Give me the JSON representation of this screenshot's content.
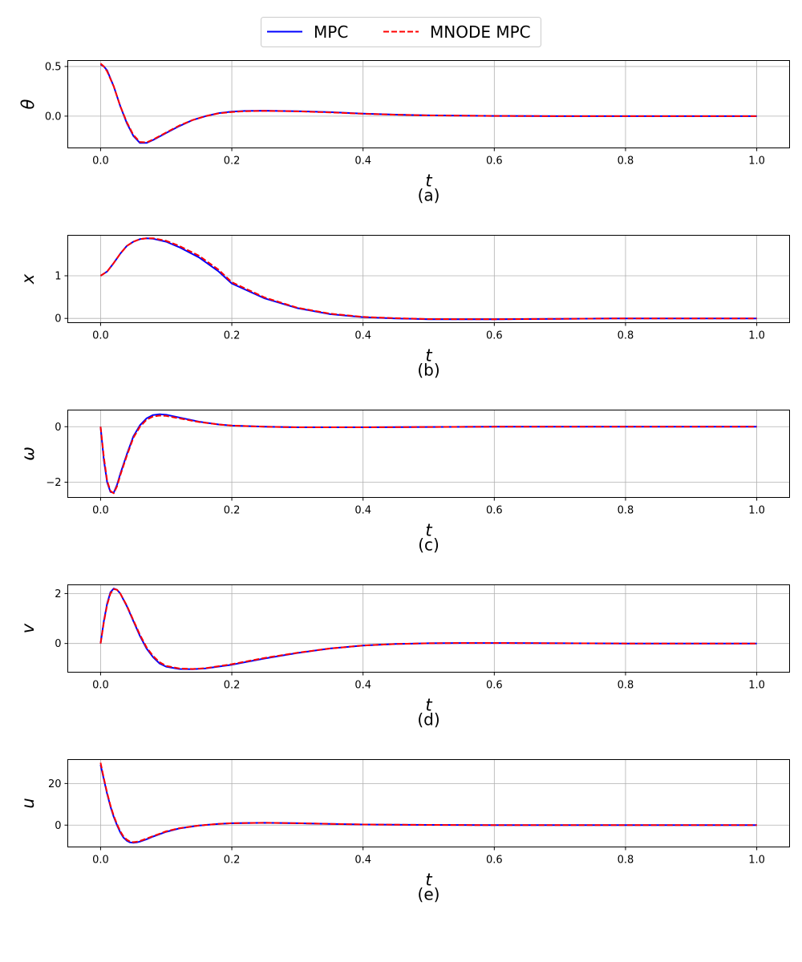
{
  "legend": {
    "entries": [
      {
        "label": "MPC",
        "color": "#0000ff",
        "dash": "solid"
      },
      {
        "label": "MNODE MPC",
        "color": "#ff0000",
        "dash": "dashed"
      }
    ],
    "placement": "top-center"
  },
  "chart_data": [
    {
      "type": "line",
      "caption": "(a)",
      "xlabel": "t",
      "ylabel": "θ",
      "xlim": [
        -0.05,
        1.05
      ],
      "ylim": [
        -0.32,
        0.56
      ],
      "xticks": [
        "0.0",
        "0.2",
        "0.4",
        "0.6",
        "0.8",
        "1.0"
      ],
      "xtick_values": [
        0,
        0.2,
        0.4,
        0.6,
        0.8,
        1.0
      ],
      "yticks": [
        "0.5",
        "0.0"
      ],
      "ytick_values": [
        0.5,
        0.0
      ],
      "grid": true,
      "x": [
        0,
        0.005,
        0.01,
        0.02,
        0.03,
        0.04,
        0.05,
        0.06,
        0.07,
        0.08,
        0.1,
        0.12,
        0.14,
        0.16,
        0.18,
        0.2,
        0.22,
        0.25,
        0.3,
        0.35,
        0.4,
        0.45,
        0.5,
        0.6,
        0.7,
        0.8,
        0.9,
        1.0
      ],
      "series": [
        {
          "name": "MPC",
          "values": [
            0.52,
            0.5,
            0.46,
            0.3,
            0.1,
            -0.07,
            -0.2,
            -0.27,
            -0.27,
            -0.24,
            -0.17,
            -0.1,
            -0.04,
            0.0,
            0.03,
            0.045,
            0.052,
            0.055,
            0.05,
            0.04,
            0.025,
            0.015,
            0.008,
            0.002,
            0.0,
            0.0,
            0.0,
            0.0
          ]
        },
        {
          "name": "MNODE MPC",
          "values": [
            0.53,
            0.5,
            0.45,
            0.3,
            0.1,
            -0.06,
            -0.19,
            -0.26,
            -0.265,
            -0.235,
            -0.165,
            -0.095,
            -0.04,
            0.0,
            0.028,
            0.042,
            0.05,
            0.053,
            0.048,
            0.038,
            0.024,
            0.014,
            0.007,
            0.002,
            0.0,
            0.0,
            0.0,
            0.0
          ]
        }
      ]
    },
    {
      "type": "line",
      "caption": "(b)",
      "xlabel": "t",
      "ylabel": "x",
      "xlim": [
        -0.05,
        1.05
      ],
      "ylim": [
        -0.1,
        1.95
      ],
      "xticks": [
        "0.0",
        "0.2",
        "0.4",
        "0.6",
        "0.8",
        "1.0"
      ],
      "xtick_values": [
        0,
        0.2,
        0.4,
        0.6,
        0.8,
        1.0
      ],
      "yticks": [
        "1",
        "0"
      ],
      "ytick_values": [
        1,
        0
      ],
      "grid": true,
      "x": [
        0,
        0.01,
        0.02,
        0.03,
        0.04,
        0.05,
        0.06,
        0.07,
        0.08,
        0.1,
        0.12,
        0.15,
        0.18,
        0.2,
        0.25,
        0.3,
        0.35,
        0.4,
        0.45,
        0.5,
        0.6,
        0.7,
        0.8,
        0.9,
        1.0
      ],
      "series": [
        {
          "name": "MPC",
          "values": [
            1.0,
            1.1,
            1.3,
            1.52,
            1.7,
            1.8,
            1.86,
            1.88,
            1.87,
            1.8,
            1.67,
            1.43,
            1.1,
            0.82,
            0.47,
            0.24,
            0.1,
            0.03,
            0.0,
            -0.02,
            -0.02,
            -0.01,
            0.0,
            0.0,
            0.0
          ]
        },
        {
          "name": "MNODE MPC",
          "values": [
            1.0,
            1.1,
            1.3,
            1.52,
            1.7,
            1.8,
            1.86,
            1.88,
            1.88,
            1.82,
            1.7,
            1.47,
            1.14,
            0.85,
            0.49,
            0.25,
            0.11,
            0.035,
            0.005,
            -0.015,
            -0.02,
            -0.01,
            0.0,
            0.0,
            0.0
          ]
        }
      ]
    },
    {
      "type": "line",
      "caption": "(c)",
      "xlabel": "t",
      "ylabel": "ω",
      "xlim": [
        -0.05,
        1.05
      ],
      "ylim": [
        -2.55,
        0.6
      ],
      "xticks": [
        "0.0",
        "0.2",
        "0.4",
        "0.6",
        "0.8",
        "1.0"
      ],
      "xtick_values": [
        0,
        0.2,
        0.4,
        0.6,
        0.8,
        1.0
      ],
      "yticks": [
        "0",
        "−2"
      ],
      "ytick_values": [
        0,
        -2
      ],
      "grid": true,
      "x": [
        0,
        0.005,
        0.01,
        0.015,
        0.02,
        0.025,
        0.03,
        0.04,
        0.05,
        0.06,
        0.07,
        0.08,
        0.09,
        0.1,
        0.12,
        0.15,
        0.18,
        0.2,
        0.25,
        0.3,
        0.35,
        0.4,
        0.5,
        0.6,
        0.7,
        0.8,
        0.9,
        1.0
      ],
      "series": [
        {
          "name": "MPC",
          "values": [
            0.0,
            -1.2,
            -2.0,
            -2.35,
            -2.38,
            -2.1,
            -1.7,
            -1.0,
            -0.35,
            0.05,
            0.3,
            0.42,
            0.45,
            0.43,
            0.33,
            0.18,
            0.08,
            0.04,
            0.0,
            -0.02,
            -0.02,
            -0.02,
            -0.01,
            0.0,
            0.0,
            0.0,
            0.0,
            0.0
          ]
        },
        {
          "name": "MNODE MPC",
          "values": [
            0.0,
            -1.1,
            -1.95,
            -2.32,
            -2.4,
            -2.15,
            -1.75,
            -1.05,
            -0.4,
            0.0,
            0.25,
            0.37,
            0.4,
            0.39,
            0.3,
            0.17,
            0.08,
            0.04,
            0.0,
            -0.02,
            -0.02,
            -0.02,
            -0.01,
            0.0,
            0.0,
            0.0,
            0.0,
            0.0
          ]
        }
      ]
    },
    {
      "type": "line",
      "caption": "(d)",
      "xlabel": "t",
      "ylabel": "v",
      "xlim": [
        -0.05,
        1.05
      ],
      "ylim": [
        -1.15,
        2.35
      ],
      "xticks": [
        "0.0",
        "0.2",
        "0.4",
        "0.6",
        "0.8",
        "1.0"
      ],
      "xtick_values": [
        0,
        0.2,
        0.4,
        0.6,
        0.8,
        1.0
      ],
      "yticks": [
        "2",
        "0"
      ],
      "ytick_values": [
        2,
        0
      ],
      "grid": true,
      "x": [
        0,
        0.005,
        0.01,
        0.015,
        0.02,
        0.025,
        0.03,
        0.04,
        0.05,
        0.06,
        0.07,
        0.08,
        0.09,
        0.1,
        0.12,
        0.14,
        0.16,
        0.2,
        0.25,
        0.3,
        0.35,
        0.4,
        0.45,
        0.5,
        0.55,
        0.6,
        0.7,
        0.8,
        0.9,
        1.0
      ],
      "series": [
        {
          "name": "MPC",
          "values": [
            0.0,
            0.9,
            1.6,
            2.05,
            2.2,
            2.15,
            2.0,
            1.5,
            0.9,
            0.3,
            -0.2,
            -0.55,
            -0.8,
            -0.93,
            -1.02,
            -1.03,
            -1.0,
            -0.85,
            -0.6,
            -0.38,
            -0.2,
            -0.08,
            -0.02,
            0.01,
            0.02,
            0.02,
            0.01,
            0.0,
            0.0,
            0.0
          ]
        },
        {
          "name": "MNODE MPC",
          "values": [
            0.0,
            0.85,
            1.55,
            2.0,
            2.18,
            2.15,
            2.0,
            1.52,
            0.93,
            0.35,
            -0.15,
            -0.5,
            -0.75,
            -0.9,
            -1.0,
            -1.02,
            -0.99,
            -0.83,
            -0.58,
            -0.37,
            -0.2,
            -0.08,
            -0.02,
            0.01,
            0.02,
            0.02,
            0.01,
            0.0,
            0.0,
            0.0
          ]
        }
      ]
    },
    {
      "type": "line",
      "caption": "(e)",
      "xlabel": "t",
      "ylabel": "u",
      "xlim": [
        -0.05,
        1.05
      ],
      "ylim": [
        -10.5,
        31.5
      ],
      "xticks": [
        "0.0",
        "0.2",
        "0.4",
        "0.6",
        "0.8",
        "1.0"
      ],
      "xtick_values": [
        0,
        0.2,
        0.4,
        0.6,
        0.8,
        1.0
      ],
      "yticks": [
        "20",
        "0"
      ],
      "ytick_values": [
        20,
        0
      ],
      "grid": true,
      "x": [
        0,
        0.005,
        0.01,
        0.015,
        0.02,
        0.025,
        0.03,
        0.035,
        0.04,
        0.045,
        0.05,
        0.055,
        0.06,
        0.07,
        0.08,
        0.1,
        0.12,
        0.15,
        0.18,
        0.2,
        0.25,
        0.3,
        0.35,
        0.4,
        0.5,
        0.6,
        0.7,
        0.8,
        0.9,
        1.0
      ],
      "series": [
        {
          "name": "MPC",
          "values": [
            29.0,
            22.0,
            15.0,
            9.0,
            4.0,
            0.0,
            -3.5,
            -6.0,
            -7.5,
            -8.3,
            -8.5,
            -8.3,
            -7.9,
            -6.8,
            -5.5,
            -3.2,
            -1.6,
            -0.2,
            0.6,
            0.9,
            1.1,
            0.9,
            0.6,
            0.3,
            0.1,
            0.0,
            0.0,
            0.0,
            0.0,
            0.0
          ]
        },
        {
          "name": "MNODE MPC",
          "values": [
            30.0,
            22.5,
            15.5,
            9.5,
            4.5,
            0.5,
            -3.0,
            -5.5,
            -7.0,
            -7.9,
            -8.2,
            -8.0,
            -7.6,
            -6.5,
            -5.3,
            -3.0,
            -1.5,
            -0.2,
            0.6,
            0.9,
            1.1,
            0.9,
            0.6,
            0.3,
            0.1,
            0.0,
            0.0,
            0.0,
            0.0,
            0.0
          ]
        }
      ]
    }
  ]
}
